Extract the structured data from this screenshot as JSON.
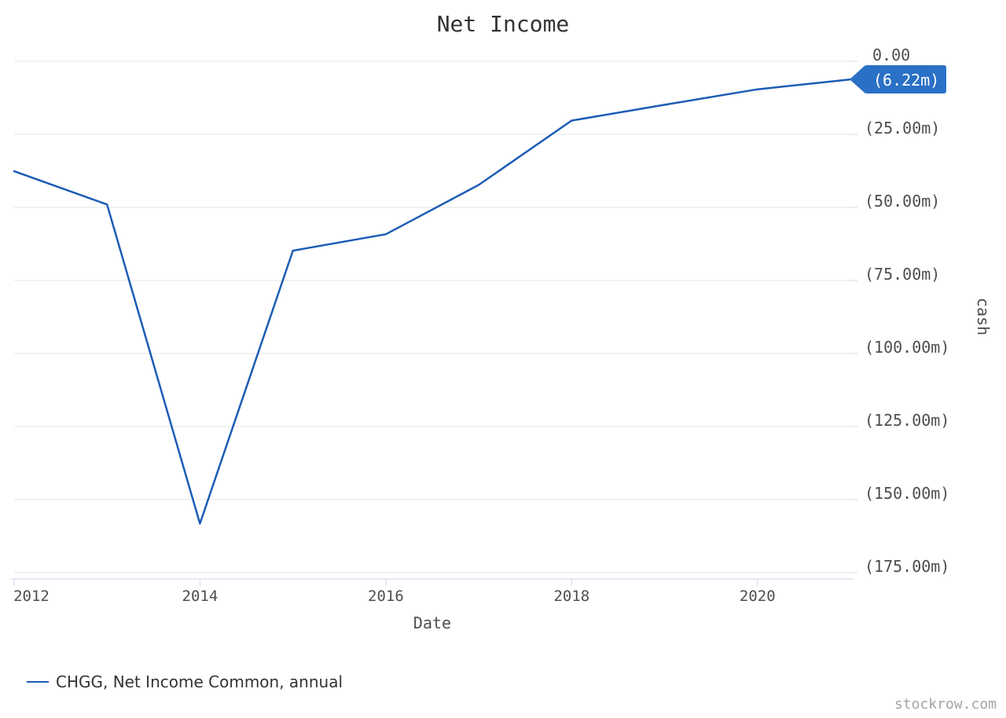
{
  "page": {
    "watermark": "stockrow.com"
  },
  "colors": {
    "line": "#1c5cb5",
    "badge_bg": "#2a70c6",
    "badge_text": "#ffffff",
    "gridline": "#e6e6e6",
    "y_tick": "#d9d9d9",
    "x_axis": "#ccd6eb",
    "title_text": "#333333",
    "label_text": "#4d4d4d",
    "legend_text": "#333333",
    "watermark_text": "#a3a3a3"
  },
  "chart_data": {
    "type": "line",
    "title": "Net Income",
    "xlabel": "Date",
    "ylabel": "cash",
    "grid": "horizontal-only",
    "legend_position": "bottom-left",
    "series": [
      {
        "name": "CHGG, Net Income Common, annual",
        "ticker": "CHGG",
        "metric": "Net Income Common",
        "period": "annual",
        "fiscal_years": [
          2011,
          2012,
          2013,
          2014,
          2015,
          2016,
          2017,
          2018,
          2019,
          2020
        ],
        "values_millions": [
          -37.6,
          -49.0,
          -158.2,
          -64.8,
          -59.2,
          -42.3,
          -20.3,
          -14.9,
          -9.6,
          -6.22
        ],
        "plotted_at_fiscal_year_end": true
      }
    ],
    "last_value_label": "(6.22m)",
    "x_axis": {
      "title": "Date",
      "tick_years": [
        2012,
        2014,
        2016,
        2018,
        2020
      ],
      "tick_labels": [
        "2012",
        "2014",
        "2016",
        "2018",
        "2020"
      ],
      "range_years": [
        2012,
        2021
      ]
    },
    "y_axis": {
      "title": "cash",
      "side": "right",
      "range_millions": [
        -183,
        0
      ],
      "ticks": [
        {
          "value": 0,
          "label": "0.00"
        },
        {
          "value": -25,
          "label": "(25.00m)"
        },
        {
          "value": -50,
          "label": "(50.00m)"
        },
        {
          "value": -75,
          "label": "(75.00m)"
        },
        {
          "value": -100,
          "label": "(100.00m)"
        },
        {
          "value": -125,
          "label": "(125.00m)"
        },
        {
          "value": -150,
          "label": "(150.00m)"
        },
        {
          "value": -175,
          "label": "(175.00m)"
        }
      ]
    }
  }
}
